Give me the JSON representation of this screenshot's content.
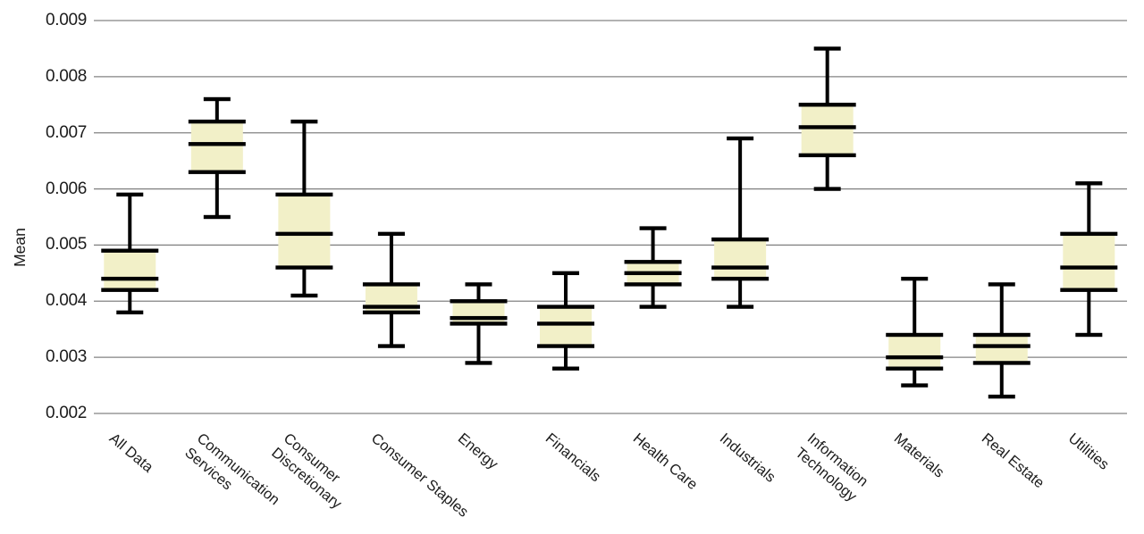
{
  "chart_data": {
    "type": "box",
    "title": "",
    "xlabel": "",
    "ylabel": "Mean",
    "ylim": [
      0.002,
      0.009
    ],
    "y_ticks": [
      "0.009",
      "0.008",
      "0.007",
      "0.006",
      "0.005",
      "0.004",
      "0.003",
      "0.002"
    ],
    "grid": "horizontal-only",
    "legend": "none",
    "colors": {
      "box_fill": "#f2f0c8",
      "box_line": "#000000",
      "gridline": "#838383",
      "text": "#1c1c1c",
      "background": "#ffffff"
    },
    "categories": [
      "All Data",
      "Communication Services",
      "Consumer Discretionary",
      "Consumer Staples",
      "Energy",
      "Financials",
      "Health Care",
      "Industrials",
      "Information Technology",
      "Materials",
      "Real Estate",
      "Utilities"
    ],
    "category_display": [
      "All Data",
      "Communication\nServices",
      "Consumer\nDiscretionary",
      "Consumer Staples",
      "Energy",
      "Financials",
      "Health Care",
      "Industrials",
      "Information\nTechnology",
      "Materials",
      "Real Estate",
      "Utilities"
    ],
    "series": [
      {
        "name": "All Data",
        "min": 0.0038,
        "q1": 0.0042,
        "median": 0.0044,
        "q3": 0.0049,
        "max": 0.0059
      },
      {
        "name": "Communication Services",
        "min": 0.0055,
        "q1": 0.0063,
        "median": 0.0068,
        "q3": 0.0072,
        "max": 0.0076
      },
      {
        "name": "Consumer Discretionary",
        "min": 0.0041,
        "q1": 0.0046,
        "median": 0.0052,
        "q3": 0.0059,
        "max": 0.0072
      },
      {
        "name": "Consumer Staples",
        "min": 0.0032,
        "q1": 0.0038,
        "median": 0.0039,
        "q3": 0.0043,
        "max": 0.0052
      },
      {
        "name": "Energy",
        "min": 0.0029,
        "q1": 0.0036,
        "median": 0.0037,
        "q3": 0.004,
        "max": 0.0043
      },
      {
        "name": "Financials",
        "min": 0.0028,
        "q1": 0.0032,
        "median": 0.0036,
        "q3": 0.0039,
        "max": 0.0045
      },
      {
        "name": "Health Care",
        "min": 0.0039,
        "q1": 0.0043,
        "median": 0.0045,
        "q3": 0.0047,
        "max": 0.0053
      },
      {
        "name": "Industrials",
        "min": 0.0039,
        "q1": 0.0044,
        "median": 0.0046,
        "q3": 0.0051,
        "max": 0.0069
      },
      {
        "name": "Information Technology",
        "min": 0.006,
        "q1": 0.0066,
        "median": 0.0071,
        "q3": 0.0075,
        "max": 0.0085
      },
      {
        "name": "Materials",
        "min": 0.0025,
        "q1": 0.0028,
        "median": 0.003,
        "q3": 0.0034,
        "max": 0.0044
      },
      {
        "name": "Real Estate",
        "min": 0.0023,
        "q1": 0.0029,
        "median": 0.0032,
        "q3": 0.0034,
        "max": 0.0043
      },
      {
        "name": "Utilities",
        "min": 0.0034,
        "q1": 0.0042,
        "median": 0.0046,
        "q3": 0.0052,
        "max": 0.0061
      }
    ]
  }
}
